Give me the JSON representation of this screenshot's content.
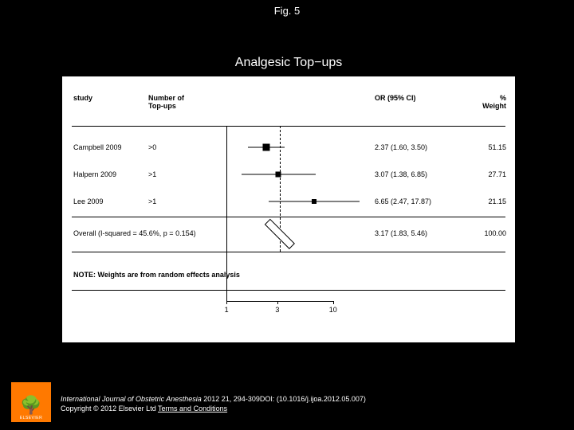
{
  "figure_label": "Fig. 5",
  "plot": {
    "title": "Analgesic Top−ups",
    "title_bg": "#000000",
    "title_color": "#ffffff",
    "title_fontsize": 16,
    "panel_bg": "#ffffff",
    "headers": {
      "study": "study",
      "topups": "Number of\nTop-ups",
      "or": "OR (95% CI)",
      "weight": "%\nWeight"
    },
    "rows": [
      {
        "study": "Campbell 2009",
        "topups": ">0",
        "or_text": "2.37 (1.60, 3.50)",
        "weight": "51.15",
        "est": 2.37,
        "lo": 1.6,
        "hi": 3.5,
        "box_size": 9
      },
      {
        "study": "Halpern 2009",
        "topups": ">1",
        "or_text": "3.07 (1.38, 6.85)",
        "weight": "27.71",
        "est": 3.07,
        "lo": 1.38,
        "hi": 6.85,
        "box_size": 7
      },
      {
        "study": "Lee 2009",
        "topups": ">1",
        "or_text": "6.65 (2.47, 17.87)",
        "weight": "21.15",
        "est": 6.65,
        "lo": 2.47,
        "hi": 17.87,
        "box_size": 6
      }
    ],
    "overall": {
      "label": "Overall  (I-squared = 45.6%, p = 0.154)",
      "or_text": "3.17 (1.83, 5.46)",
      "weight": "100.00",
      "est": 3.17,
      "lo": 1.83,
      "hi": 5.46
    },
    "note": "NOTE: Weights are from random effects analysis",
    "axis": {
      "scale": "log",
      "ticks": [
        1,
        3,
        10
      ],
      "tick_labels": [
        "1",
        "3",
        "10"
      ],
      "ref_line": 1,
      "pooled_line": 3.17,
      "min": 0.9,
      "max": 20
    },
    "colors": {
      "line": "#000000",
      "marker": "#000000",
      "text": "#000000"
    }
  },
  "footer": {
    "journal": "International Journal of Obstetric Anesthesia",
    "citation_rest": " 2012 21, 294-309DOI: (10.1016/j.ijoa.2012.05.007)",
    "copyright": "Copyright © 2012 Elsevier Ltd ",
    "terms": "Terms and Conditions"
  },
  "logo": {
    "name": "ELSEVIER",
    "bg": "#ff7900"
  }
}
